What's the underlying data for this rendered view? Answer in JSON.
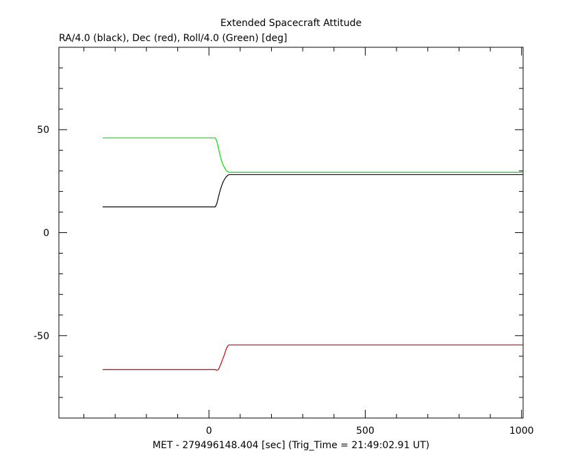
{
  "chart_data": {
    "type": "line",
    "title": "Extended Spacecraft Attitude",
    "subtitle": "RA/4.0 (black), Dec (red), Roll/4.0 (Green) [deg]",
    "xlabel": "MET - 279496148.404 [sec] (Trig_Time = 21:49:02.91 UT)",
    "ylabel": "",
    "xlim": [
      -480,
      1005
    ],
    "ylim": [
      -90,
      90
    ],
    "x_ticks": [
      0,
      500,
      1000
    ],
    "y_ticks": [
      -50,
      0,
      50
    ],
    "grid": false,
    "legend": "none",
    "series": [
      {
        "color": "#000000",
        "x": [
          -340,
          20,
          25,
          30,
          35,
          40,
          45,
          50,
          55,
          60,
          65,
          1005
        ],
        "y": [
          12.5,
          12.5,
          14,
          17,
          20,
          22.5,
          24.5,
          26,
          27,
          27.8,
          28.2,
          28.2
        ]
      },
      {
        "color": "#cc0000",
        "x": [
          -340,
          20,
          25,
          30,
          35,
          40,
          45,
          50,
          55,
          60,
          65,
          1005
        ],
        "y": [
          -66.5,
          -66.5,
          -66.8,
          -66.5,
          -65,
          -63,
          -61,
          -59,
          -56.5,
          -55,
          -54.5,
          -54.5
        ]
      },
      {
        "color": "#00dd00",
        "x": [
          -340,
          20,
          25,
          30,
          35,
          40,
          45,
          50,
          55,
          60,
          65,
          1005
        ],
        "y": [
          46,
          46,
          44.5,
          41.5,
          38,
          35,
          33,
          31.5,
          30.2,
          29.6,
          29.3,
          29.3
        ]
      }
    ]
  }
}
